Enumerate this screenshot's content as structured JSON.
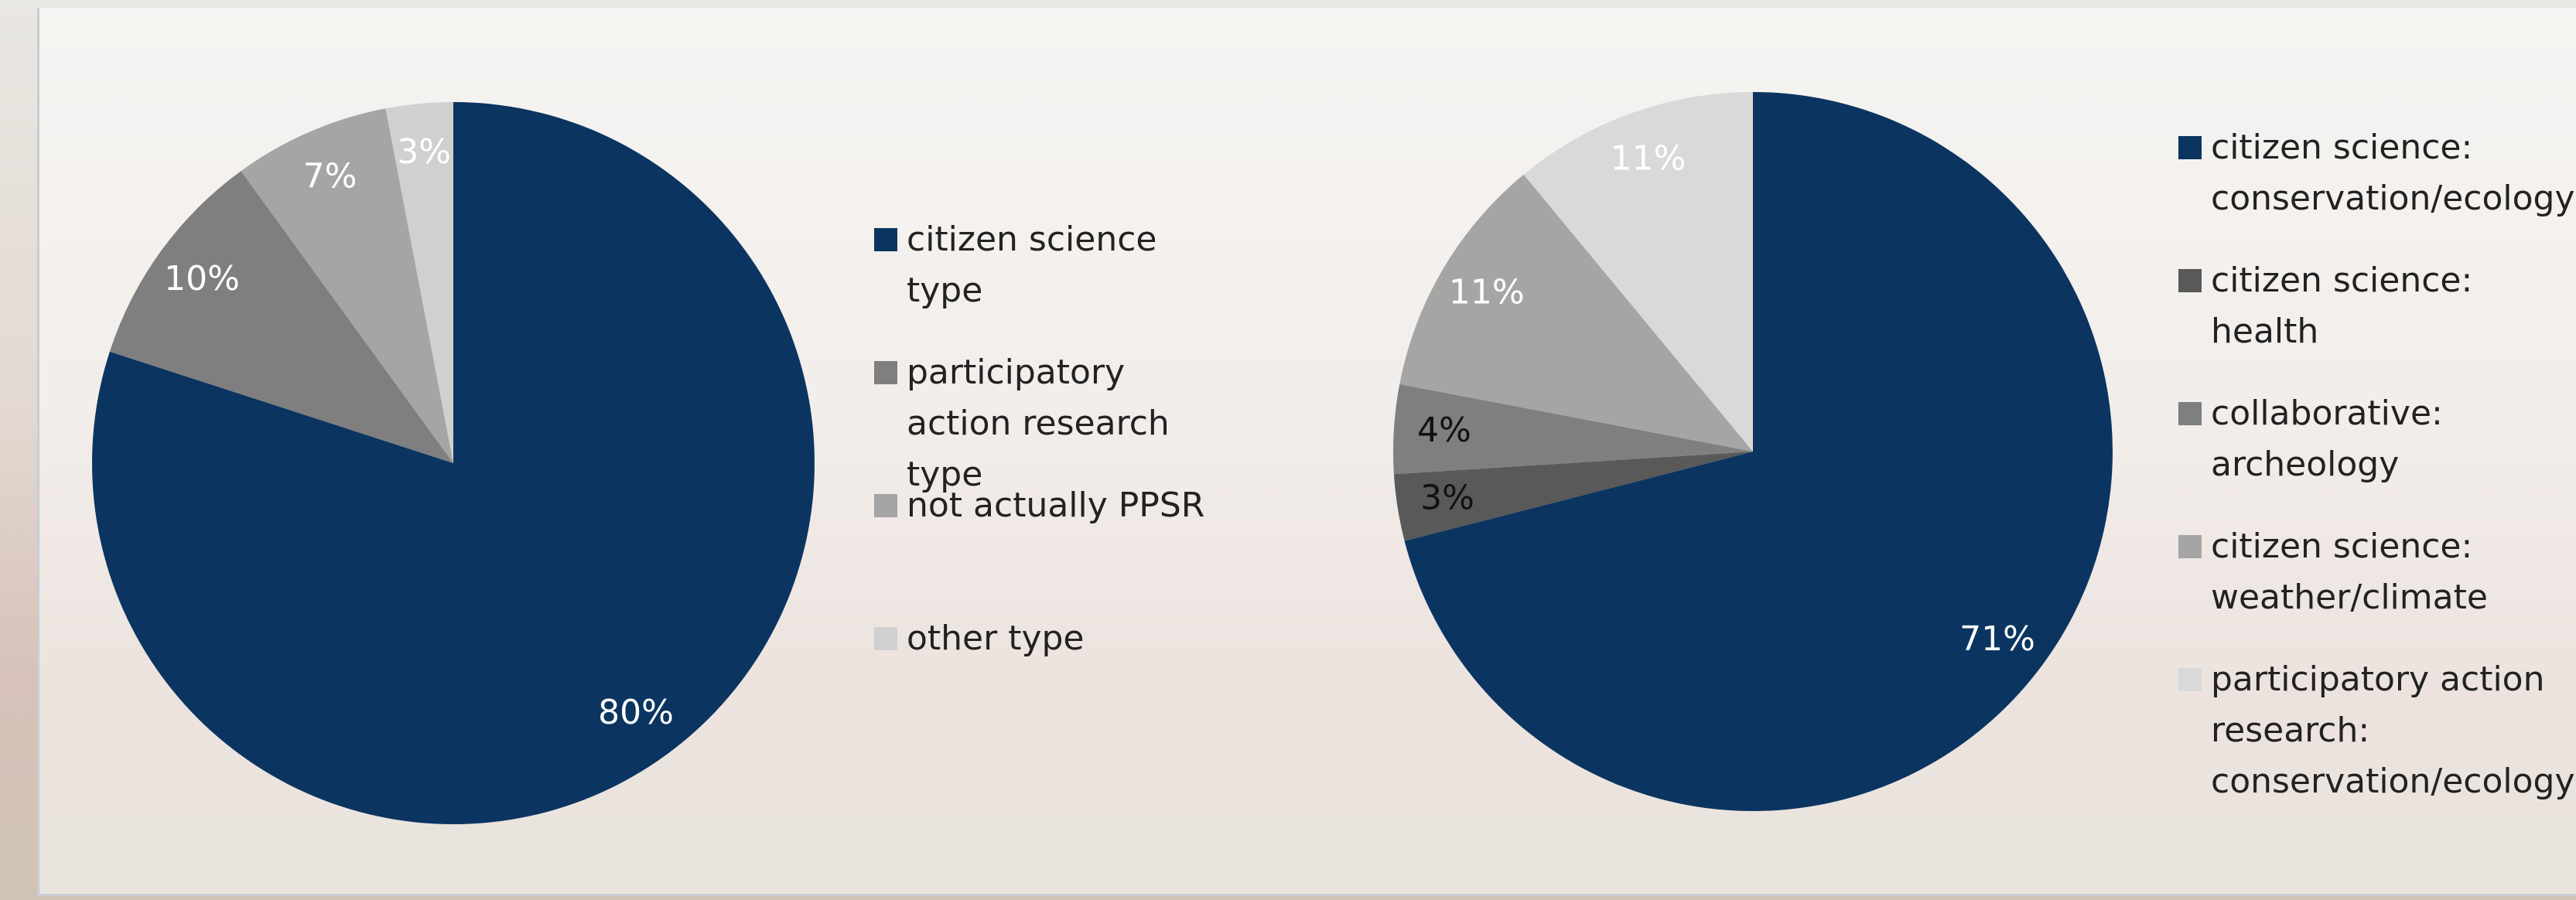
{
  "chart_data": [
    {
      "type": "pie",
      "categories": [
        "citizen science type",
        "participatory action research type",
        "not actually PPSR",
        "other type"
      ],
      "values": [
        80,
        10,
        7,
        3
      ],
      "value_labels": [
        "80%",
        "10%",
        "7%",
        "3%"
      ],
      "colors": [
        "#0b3560",
        "#7f7f7f",
        "#a5a5a5",
        "#d0d0d0"
      ],
      "value_label_colors": [
        "#ffffff",
        "#ffffff",
        "#ffffff",
        "#ffffff"
      ]
    },
    {
      "type": "pie",
      "categories": [
        "citizen science: conservation/ecology",
        "citizen science: health",
        "collaborative: archeology",
        "citizen science: weather/climate",
        "participatory action research: conservation/ecology"
      ],
      "values": [
        71,
        3,
        4,
        11,
        11
      ],
      "value_labels": [
        "71%",
        "3%",
        "4%",
        "11%",
        "11%"
      ],
      "colors": [
        "#0b3560",
        "#595959",
        "#7f7f7f",
        "#a5a5a5",
        "#d9d9d9"
      ],
      "value_label_colors": [
        "#ffffff",
        "#111111",
        "#111111",
        "#ffffff",
        "#ffffff"
      ]
    }
  ]
}
